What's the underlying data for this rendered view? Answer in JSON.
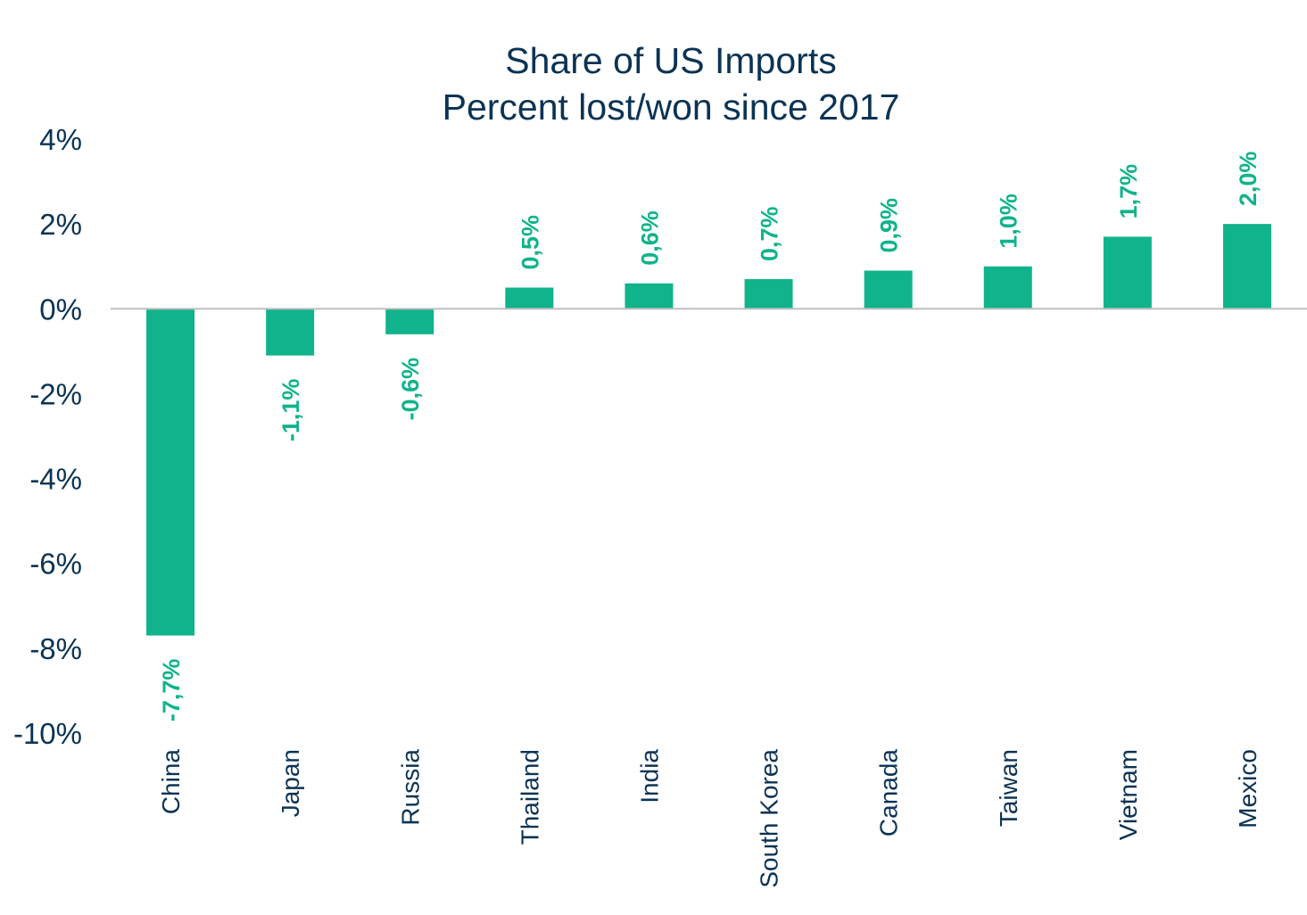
{
  "chart_data": {
    "type": "bar",
    "title": "Share of US Imports",
    "subtitle": "Percent lost/won since 2017",
    "categories": [
      "China",
      "Japan",
      "Russia",
      "Thailand",
      "India",
      "South Korea",
      "Canada",
      "Taiwan",
      "Vietnam",
      "Mexico"
    ],
    "values": [
      -7.7,
      -1.1,
      -0.6,
      0.5,
      0.6,
      0.7,
      0.9,
      1.0,
      1.7,
      2.0
    ],
    "data_labels": [
      "-7,7%",
      "-1,1%",
      "-0,6%",
      "0,5%",
      "0,6%",
      "0,7%",
      "0,9%",
      "1,0%",
      "1,7%",
      "2,0%"
    ],
    "yticks": [
      4,
      2,
      0,
      -2,
      -4,
      -6,
      -8,
      -10
    ],
    "ytick_labels": [
      "4%",
      "2%",
      "0%",
      "-2%",
      "-4%",
      "-6%",
      "-8%",
      "-10%"
    ],
    "ylim": [
      -10,
      4
    ],
    "grid": false,
    "legend": "none",
    "colors": {
      "bar": "#10b38b",
      "label": "#10b38b",
      "text": "#0b3354",
      "axis": "#bfbfbf"
    }
  }
}
